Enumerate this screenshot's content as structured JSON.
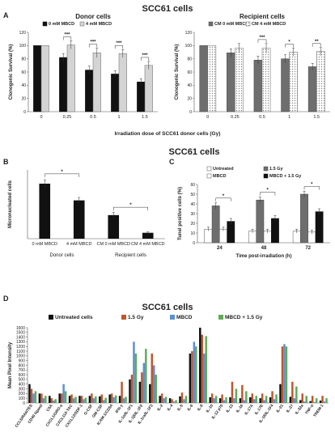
{
  "headings": {
    "top": "SCC61 cells",
    "middle": "SCC61 cells",
    "bottom": "SCC61 cells"
  },
  "panel_letters": [
    "A",
    "B",
    "C",
    "D"
  ],
  "colors": {
    "black": "#111111",
    "white": "#ffffff",
    "light_gray": "#d4d4d4",
    "dark_gray": "#6e6e6e",
    "hatch": "#9a9a9a",
    "red": "#c0562e",
    "blue": "#5b8fd6",
    "green": "#5fab58"
  },
  "chart_data": [
    {
      "id": "A1",
      "type": "bar",
      "title": "Donor cells",
      "xlabel": "",
      "ylabel": "Clonogenic Survival (%)",
      "ylim": [
        0,
        120
      ],
      "yticks": [
        0,
        20,
        40,
        60,
        80,
        100,
        120
      ],
      "categories": [
        "0",
        "0.25",
        "0.5",
        "1",
        "1.5"
      ],
      "series": [
        {
          "name": "0 mM MBCD",
          "values": [
            100,
            82,
            63,
            57,
            45
          ],
          "errors": [
            0,
            6,
            6,
            5,
            5
          ]
        },
        {
          "name": "4 mM MBCD",
          "values": [
            100,
            101,
            89,
            88,
            70
          ],
          "errors": [
            0,
            6,
            7,
            6,
            6
          ]
        }
      ],
      "significance": [
        "***",
        "***",
        "***",
        "***"
      ],
      "legend": "top"
    },
    {
      "id": "A2",
      "type": "bar",
      "title": "Recipient cells",
      "xlabel": "",
      "ylabel": "Clonogenic Survival (%)",
      "ylim": [
        0,
        120
      ],
      "yticks": [
        0,
        20,
        40,
        60,
        80,
        100,
        120
      ],
      "categories": [
        "0",
        "0.25",
        "0.5",
        "1",
        "1.5"
      ],
      "series": [
        {
          "name": "CM 0 mM MBCD",
          "values": [
            100,
            89,
            78,
            80,
            68
          ],
          "errors": [
            0,
            6,
            6,
            6,
            5
          ]
        },
        {
          "name": "CM 4 mM MBCD",
          "values": [
            100,
            96,
            96,
            90,
            91
          ],
          "errors": [
            0,
            7,
            7,
            6,
            6
          ]
        }
      ],
      "significance": [
        "***",
        "*",
        "**"
      ],
      "legend": "top"
    },
    {
      "id": "B",
      "type": "bar",
      "title": "",
      "xlabel": "",
      "ylabel": "Micronucleated cells",
      "ylim": [
        0,
        0.7
      ],
      "yticks": [],
      "categories": [
        "0 mM MBCD",
        "4 mM MBCD",
        "CM 0 mM MBCD",
        "CM 4 mM MBCD"
      ],
      "values": [
        0.56,
        0.39,
        0.24,
        0.06
      ],
      "errors": [
        0.04,
        0.03,
        0.03,
        0.01
      ],
      "groups": [
        "Donor cells",
        "Recipient cells"
      ],
      "significance": [
        "*",
        "*"
      ]
    },
    {
      "id": "C",
      "type": "bar",
      "title": "",
      "xlabel": "Time post-irradiation (h)",
      "ylabel": "Tunel positive cells (%)",
      "ylim": [
        0,
        60
      ],
      "yticks": [
        0,
        10,
        20,
        30,
        40,
        50,
        60
      ],
      "categories": [
        "24",
        "48",
        "72"
      ],
      "series": [
        {
          "name": "Untreated",
          "values": [
            14,
            12,
            12
          ],
          "errors": [
            2,
            2,
            2
          ]
        },
        {
          "name": "1.5 Gy",
          "values": [
            38,
            44,
            50
          ],
          "errors": [
            3,
            3,
            3
          ]
        },
        {
          "name": "MBCD",
          "values": [
            14,
            12,
            11
          ],
          "errors": [
            2,
            2,
            2
          ]
        },
        {
          "name": "MBCD + 1.5 Gy",
          "values": [
            22,
            25,
            32
          ],
          "errors": [
            3,
            3,
            3
          ]
        }
      ],
      "significance": [
        "*",
        "*",
        "*"
      ],
      "legend": "top"
    },
    {
      "id": "D",
      "type": "bar",
      "title": "",
      "xlabel": "",
      "ylabel": "Mean Pixel Intensity",
      "ylim": [
        0,
        1600
      ],
      "yticks": [
        0,
        100,
        200,
        300,
        400,
        500,
        600,
        700,
        800,
        900,
        1000,
        1100,
        1200,
        1300,
        1400,
        1500,
        1600
      ],
      "categories": [
        "CCL5/RANTES",
        "CD40 ligand",
        "C5A",
        "CXCL1/GRO-a",
        "CXCL11/I-TAC",
        "CXCL12/SDF-1",
        "G-CSF",
        "GM-CSF",
        "ICAM-1/CD54",
        "IFN-γ",
        "IL-1α/IL-1F1",
        "IL-1β/IL-1F2",
        "IL-1ra/IL-1F3",
        "IL-2",
        "IL-4",
        "IL-5",
        "IL-6",
        "IL-8",
        "IL-10",
        "IL-12 p70",
        "IL-13",
        "IL-16",
        "IL-17A",
        "IL-17E",
        "IL-18/IL-1F4",
        "IL-21",
        "IL-27",
        "IL-32a",
        "TNF-α",
        "TREM-1"
      ],
      "series": [
        {
          "name": "Untreated cells",
          "values": [
            400,
            200,
            150,
            200,
            150,
            150,
            150,
            140,
            180,
            150,
            500,
            450,
            400,
            150,
            100,
            140,
            1050,
            1600,
            120,
            100,
            120,
            100,
            120,
            100,
            120,
            400,
            130,
            60,
            40,
            50
          ]
        },
        {
          "name": "1.5 Gy",
          "values": [
            300,
            200,
            100,
            200,
            180,
            150,
            200,
            180,
            200,
            450,
            600,
            650,
            1050,
            200,
            80,
            220,
            1100,
            1450,
            200,
            180,
            450,
            380,
            200,
            200,
            250,
            1200,
            450,
            200,
            150,
            150
          ]
        },
        {
          "name": "MBCD",
          "values": [
            200,
            100,
            50,
            400,
            100,
            80,
            100,
            60,
            120,
            100,
            1300,
            850,
            800,
            100,
            30,
            80,
            1300,
            1050,
            100,
            60,
            100,
            60,
            80,
            60,
            80,
            1250,
            100,
            30,
            20,
            30
          ]
        },
        {
          "name": "MBCD + 1.5 Gy",
          "values": [
            250,
            150,
            80,
            250,
            130,
            110,
            140,
            110,
            160,
            130,
            1050,
            1150,
            600,
            130,
            60,
            150,
            1200,
            1420,
            150,
            120,
            300,
            250,
            150,
            150,
            180,
            1200,
            350,
            150,
            100,
            100
          ]
        }
      ],
      "legend": "top"
    }
  ]
}
